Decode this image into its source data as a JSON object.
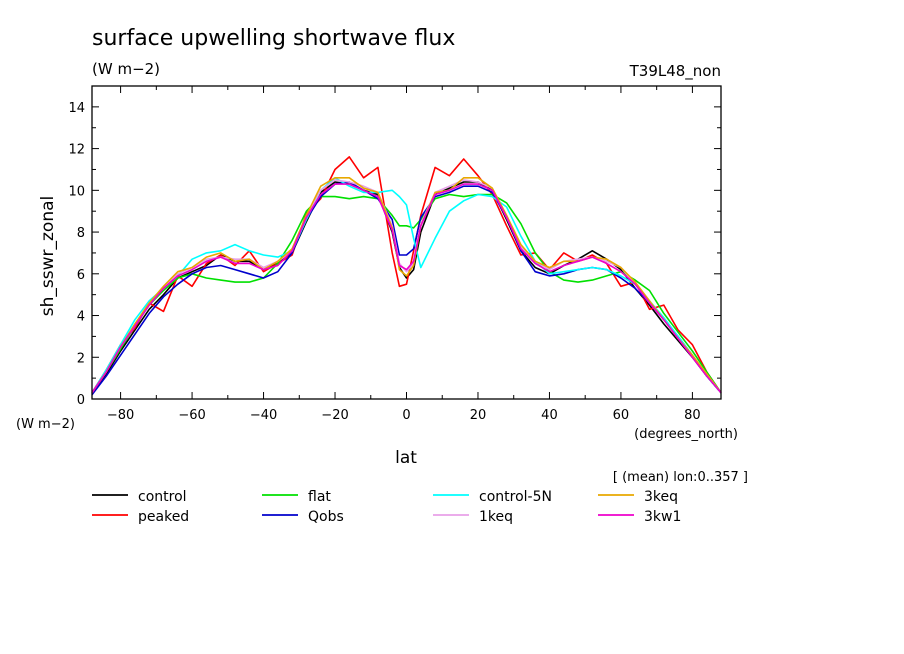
{
  "chart_data": {
    "type": "line",
    "title": "surface upwelling shortwave flux",
    "units_label": "(W m−2)",
    "experiment_label": "T39L48_non",
    "xlabel": "lat",
    "xunits": "(degrees_north)",
    "ylabel": "sh_sswr_zonal",
    "yunits": "(W m−2)",
    "averaging_note": "[ (mean) lon:0..357 ]",
    "xlim": [
      -88,
      88
    ],
    "ylim": [
      0,
      15
    ],
    "xticks": [
      -80,
      -60,
      -40,
      -20,
      0,
      20,
      40,
      60,
      80
    ],
    "xticklabels": [
      "−80",
      "−60",
      "−40",
      "−20",
      "0",
      "20",
      "40",
      "60",
      "80"
    ],
    "yticks": [
      0,
      2,
      4,
      6,
      8,
      10,
      12,
      14
    ],
    "x": [
      -88,
      -84,
      -80,
      -76,
      -72,
      -68,
      -64,
      -60,
      -56,
      -52,
      -48,
      -44,
      -40,
      -36,
      -32,
      -28,
      -24,
      -20,
      -16,
      -12,
      -8,
      -4,
      -2,
      0,
      2,
      4,
      8,
      12,
      16,
      20,
      24,
      28,
      32,
      36,
      40,
      44,
      48,
      52,
      56,
      60,
      64,
      68,
      72,
      76,
      80,
      84,
      88
    ],
    "series": [
      {
        "name": "control",
        "color": "#000000",
        "values": [
          0.3,
          1.2,
          2.3,
          3.3,
          4.3,
          5.0,
          5.8,
          6.1,
          6.4,
          6.9,
          6.6,
          6.6,
          6.2,
          6.5,
          7.0,
          8.5,
          9.9,
          10.4,
          10.3,
          10.0,
          9.8,
          8.0,
          6.3,
          5.8,
          6.2,
          8.0,
          9.8,
          10.1,
          10.4,
          10.4,
          10.0,
          8.6,
          7.1,
          6.3,
          6.0,
          6.4,
          6.7,
          7.1,
          6.7,
          6.2,
          5.3,
          4.5,
          3.6,
          2.8,
          2.0,
          1.1,
          0.3
        ]
      },
      {
        "name": "peaked",
        "color": "#ff0000",
        "values": [
          0.3,
          1.4,
          2.6,
          3.4,
          4.6,
          4.2,
          5.9,
          5.4,
          6.5,
          6.9,
          6.4,
          7.1,
          6.1,
          6.5,
          6.9,
          8.9,
          9.6,
          11.0,
          11.6,
          10.6,
          11.1,
          7.0,
          5.4,
          5.5,
          7.1,
          8.8,
          11.1,
          10.7,
          11.5,
          10.7,
          9.8,
          8.3,
          6.9,
          7.0,
          6.2,
          7.0,
          6.6,
          6.9,
          6.5,
          5.4,
          5.6,
          4.3,
          4.5,
          3.3,
          2.6,
          1.3,
          0.3
        ]
      },
      {
        "name": "flat",
        "color": "#00e000",
        "values": [
          0.3,
          1.3,
          2.4,
          3.5,
          4.5,
          5.2,
          5.8,
          6.0,
          5.8,
          5.7,
          5.6,
          5.6,
          5.8,
          6.5,
          7.6,
          9.0,
          9.7,
          9.7,
          9.6,
          9.7,
          9.6,
          8.8,
          8.3,
          8.3,
          8.2,
          8.6,
          9.6,
          9.8,
          9.7,
          9.8,
          9.8,
          9.4,
          8.4,
          7.0,
          6.1,
          5.7,
          5.6,
          5.7,
          5.9,
          6.1,
          5.7,
          5.2,
          4.1,
          3.2,
          2.3,
          1.3,
          0.3
        ]
      },
      {
        "name": "Qobs",
        "color": "#0000cc",
        "values": [
          0.2,
          1.1,
          2.1,
          3.1,
          4.1,
          4.9,
          5.5,
          6.0,
          6.3,
          6.4,
          6.2,
          6.0,
          5.8,
          6.1,
          7.0,
          8.6,
          9.7,
          10.3,
          10.4,
          10.0,
          9.6,
          8.6,
          6.9,
          6.9,
          7.2,
          8.7,
          9.7,
          9.9,
          10.2,
          10.2,
          9.9,
          8.7,
          7.1,
          6.1,
          5.9,
          6.0,
          6.2,
          6.3,
          6.2,
          5.8,
          5.3,
          4.6,
          3.8,
          3.0,
          2.1,
          1.1,
          0.3
        ]
      },
      {
        "name": "control-5N",
        "color": "#00ffff",
        "values": [
          0.3,
          1.4,
          2.6,
          3.8,
          4.7,
          5.3,
          5.9,
          6.7,
          7.0,
          7.1,
          7.4,
          7.1,
          6.9,
          6.8,
          7.1,
          8.6,
          10.0,
          10.6,
          10.2,
          9.9,
          9.9,
          10.0,
          9.7,
          9.3,
          7.7,
          6.3,
          7.7,
          9.0,
          9.5,
          9.8,
          9.7,
          9.2,
          7.8,
          6.6,
          6.0,
          6.1,
          6.2,
          6.3,
          6.2,
          5.9,
          5.5,
          4.7,
          3.9,
          3.0,
          2.1,
          1.1,
          0.3
        ]
      },
      {
        "name": "1keq",
        "color": "#e8a0e8",
        "values": [
          0.3,
          1.3,
          2.5,
          3.5,
          4.6,
          5.3,
          6.0,
          6.3,
          6.7,
          6.8,
          6.7,
          6.7,
          6.3,
          6.6,
          7.1,
          8.8,
          10.0,
          10.5,
          10.4,
          10.2,
          9.9,
          8.3,
          6.5,
          6.1,
          6.5,
          8.4,
          9.9,
          10.2,
          10.5,
          10.4,
          10.1,
          8.7,
          7.3,
          6.6,
          6.2,
          6.6,
          6.7,
          6.8,
          6.6,
          6.3,
          5.5,
          4.6,
          3.8,
          2.9,
          2.1,
          1.2,
          0.3
        ]
      },
      {
        "name": "3keq",
        "color": "#e8a800",
        "values": [
          0.3,
          1.3,
          2.5,
          3.6,
          4.6,
          5.4,
          6.1,
          6.3,
          6.8,
          7.0,
          6.6,
          6.7,
          6.2,
          6.6,
          7.2,
          8.8,
          10.2,
          10.6,
          10.6,
          10.1,
          9.9,
          8.2,
          6.2,
          5.9,
          6.4,
          8.3,
          9.9,
          10.0,
          10.6,
          10.6,
          10.1,
          8.8,
          7.4,
          6.6,
          6.3,
          6.6,
          6.6,
          6.8,
          6.7,
          6.3,
          5.6,
          4.7,
          3.8,
          2.9,
          2.1,
          1.2,
          0.3
        ]
      },
      {
        "name": "3kw1",
        "color": "#ee00cc",
        "values": [
          0.3,
          1.3,
          2.5,
          3.5,
          4.5,
          5.3,
          5.9,
          6.2,
          6.6,
          6.8,
          6.5,
          6.5,
          6.2,
          6.4,
          7.1,
          8.7,
          9.8,
          10.3,
          10.3,
          10.0,
          9.7,
          8.1,
          6.4,
          6.2,
          6.6,
          8.3,
          9.8,
          10.0,
          10.3,
          10.3,
          10.0,
          8.7,
          7.2,
          6.5,
          6.1,
          6.4,
          6.6,
          6.8,
          6.5,
          6.1,
          5.5,
          4.6,
          3.8,
          2.9,
          2.0,
          1.1,
          0.3
        ]
      }
    ],
    "legend": {
      "placement": "bottom",
      "rows": [
        [
          "control",
          "flat",
          "control-5N",
          "3keq"
        ],
        [
          "peaked",
          "Qobs",
          "1keq",
          "3kw1"
        ]
      ]
    },
    "grid": false
  }
}
